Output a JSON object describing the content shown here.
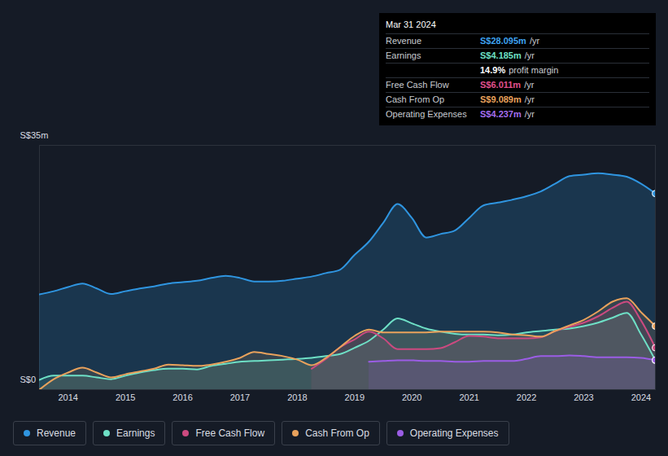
{
  "chart_data": {
    "type": "area",
    "x": [
      2013.5,
      2013.75,
      2014,
      2014.25,
      2014.5,
      2014.75,
      2015,
      2015.25,
      2015.5,
      2015.75,
      2016,
      2016.25,
      2016.5,
      2016.75,
      2017,
      2017.25,
      2017.5,
      2017.75,
      2018,
      2018.25,
      2018.5,
      2018.75,
      2019,
      2019.25,
      2019.5,
      2019.75,
      2020,
      2020.25,
      2020.5,
      2020.75,
      2021,
      2021.25,
      2021.5,
      2021.75,
      2022,
      2022.25,
      2022.5,
      2022.75,
      2023,
      2023.25,
      2023.5,
      2023.75,
      2024,
      2024.25
    ],
    "xlim": [
      2013.5,
      2024.25
    ],
    "xticks": [
      2014,
      2015,
      2016,
      2017,
      2018,
      2019,
      2020,
      2021,
      2022,
      2023,
      2024
    ],
    "ylim": [
      0,
      35
    ],
    "yticks": [
      {
        "value": 0,
        "label": "S$0"
      },
      {
        "value": 35,
        "label": "S$35m"
      }
    ],
    "grid": true,
    "series": [
      {
        "name": "Revenue",
        "color": "#2f95e0",
        "values": [
          13.65,
          14.1,
          14.7,
          15.2,
          14.5,
          13.7,
          14.1,
          14.5,
          14.8,
          15.2,
          15.4,
          15.6,
          16.0,
          16.3,
          16.0,
          15.5,
          15.5,
          15.6,
          15.9,
          16.2,
          16.7,
          17.2,
          19.3,
          21.2,
          23.9,
          26.6,
          24.6,
          21.8,
          22.3,
          22.8,
          24.6,
          26.4,
          26.8,
          27.2,
          27.7,
          28.4,
          29.5,
          30.6,
          30.8,
          31.0,
          30.8,
          30.5,
          29.5,
          28.1
        ]
      },
      {
        "name": "Earnings",
        "color": "#6ee0c6",
        "values": [
          1.4,
          2.0,
          2.0,
          2.0,
          1.75,
          1.5,
          2.0,
          2.45,
          2.8,
          3.0,
          3.0,
          2.9,
          3.4,
          3.7,
          4.0,
          4.1,
          4.2,
          4.3,
          4.4,
          4.55,
          4.8,
          5.1,
          6.0,
          7.0,
          8.6,
          10.2,
          9.5,
          8.75,
          8.3,
          8.0,
          7.9,
          7.9,
          7.8,
          7.9,
          8.2,
          8.4,
          8.6,
          8.75,
          9.1,
          9.6,
          10.3,
          11.0,
          7.9,
          4.2
        ]
      },
      {
        "name": "Free Cash Flow",
        "color": "#cc4a80",
        "values": [
          null,
          null,
          null,
          null,
          null,
          null,
          null,
          null,
          null,
          null,
          null,
          null,
          null,
          null,
          null,
          null,
          null,
          null,
          null,
          3.0,
          4.4,
          6.1,
          7.2,
          8.3,
          7.35,
          5.8,
          5.8,
          5.8,
          5.95,
          6.8,
          7.7,
          7.6,
          7.35,
          7.35,
          7.35,
          7.5,
          8.4,
          9.0,
          9.6,
          10.5,
          11.7,
          12.6,
          9.9,
          6.0
        ]
      },
      {
        "name": "Cash From Op",
        "color": "#e9a25c",
        "values": [
          0,
          1.5,
          2.45,
          3.15,
          2.45,
          1.75,
          2.2,
          2.6,
          3.0,
          3.6,
          3.5,
          3.4,
          3.6,
          4.0,
          4.55,
          5.4,
          5.1,
          4.8,
          4.3,
          3.5,
          4.55,
          6.1,
          7.7,
          8.6,
          8.2,
          8.2,
          8.2,
          8.2,
          8.3,
          8.3,
          8.3,
          8.3,
          8.2,
          7.9,
          7.8,
          7.6,
          8.4,
          9.2,
          10.0,
          11.2,
          12.6,
          13.1,
          11.1,
          9.1
        ]
      },
      {
        "name": "Operating Expenses",
        "color": "#9b5de5",
        "values": [
          null,
          null,
          null,
          null,
          null,
          null,
          null,
          null,
          null,
          null,
          null,
          null,
          null,
          null,
          null,
          null,
          null,
          null,
          null,
          null,
          null,
          null,
          null,
          4.0,
          4.1,
          4.2,
          4.2,
          4.1,
          4.1,
          4.0,
          4.0,
          4.1,
          4.1,
          4.1,
          4.4,
          4.8,
          4.8,
          4.9,
          4.8,
          4.65,
          4.65,
          4.65,
          4.55,
          4.24
        ]
      }
    ],
    "legend": "bottom",
    "tooltip": {
      "date": "Mar 31 2024",
      "rows": [
        {
          "label": "Revenue",
          "value": "S$28.095m",
          "unit": "/yr",
          "color": "#3ea3f0"
        },
        {
          "label": "Earnings",
          "value": "S$4.185m",
          "unit": "/yr",
          "color": "#6ee0c6"
        },
        {
          "label": "",
          "value": "14.9%",
          "unit": "profit margin",
          "color": "#ffffff"
        },
        {
          "label": "Free Cash Flow",
          "value": "S$6.011m",
          "unit": "/yr",
          "color": "#e0508e"
        },
        {
          "label": "Cash From Op",
          "value": "S$9.089m",
          "unit": "/yr",
          "color": "#e9a25c"
        },
        {
          "label": "Operating Expenses",
          "value": "S$4.237m",
          "unit": "/yr",
          "color": "#a46ef0"
        }
      ]
    }
  }
}
